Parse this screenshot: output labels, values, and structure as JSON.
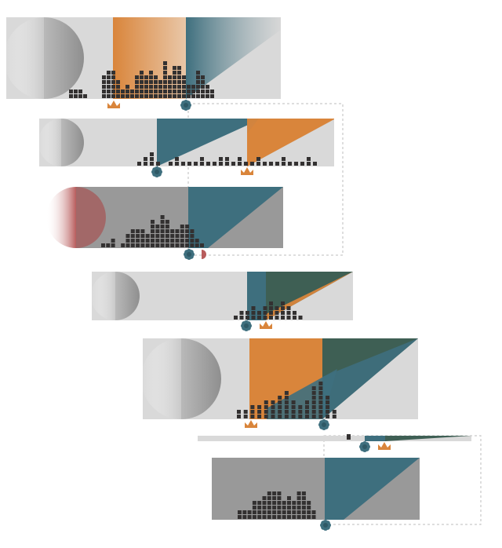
{
  "palette": {
    "orange": "#d9853b",
    "teal": "#3e6f7e",
    "green": "#3e5f54",
    "red": "#b85c5c",
    "dark_square": "#333131",
    "panel_light": "#d9d9d9",
    "panel_dark": "#999999",
    "panel_mid": "#a4a4a4"
  },
  "panels": [
    {
      "name": "panel-1",
      "bar_heights": [
        2,
        2,
        2,
        1,
        0,
        0,
        0,
        5,
        6,
        6,
        4,
        2,
        3,
        2,
        5,
        6,
        5,
        6,
        5,
        4,
        8,
        5,
        7,
        7,
        5,
        3,
        3,
        6,
        5,
        3,
        2
      ]
    },
    {
      "name": "panel-2",
      "bar_heights": [
        1,
        2,
        3,
        1,
        0,
        1,
        2,
        1,
        1,
        1,
        2,
        1,
        1,
        2,
        2,
        1,
        2,
        1,
        1,
        2,
        1,
        1,
        1,
        2,
        1,
        1,
        1,
        2,
        1
      ]
    },
    {
      "name": "panel-3",
      "bar_heights": [
        1,
        1,
        2,
        0,
        1,
        3,
        4,
        4,
        4,
        3,
        6,
        5,
        7,
        6,
        4,
        4,
        5,
        5,
        4,
        2,
        1
      ]
    },
    {
      "name": "panel-4",
      "bar_heights": [
        1,
        2,
        2,
        3,
        2,
        3,
        4,
        3,
        4,
        3,
        2,
        1
      ]
    },
    {
      "name": "panel-5",
      "bar_heights": [
        2,
        2,
        3,
        3,
        4,
        4,
        5,
        6,
        4,
        3,
        4,
        7,
        8,
        5,
        2
      ]
    },
    {
      "name": "panel-6",
      "bar_heights": [
        1
      ]
    },
    {
      "name": "panel-7",
      "bar_heights": [
        2,
        2,
        2,
        4,
        4,
        5,
        6,
        6,
        6,
        4,
        5,
        4,
        6,
        6,
        4,
        2
      ]
    }
  ],
  "markers": {
    "crown": "crown-icon",
    "flower": "flower-icon",
    "half_circle": "half-circle-icon"
  }
}
